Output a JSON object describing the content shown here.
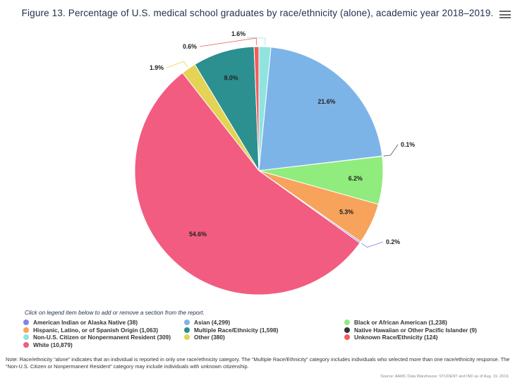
{
  "header": {
    "title": "Figure 13. Percentage of U.S. medical school graduates by race/ethnicity (alone), academic year 2018–2019.",
    "menu_icon": "hamburger-menu-icon"
  },
  "chart_data": {
    "type": "pie",
    "title": "Figure 13. Percentage of U.S. medical school graduates by race/ethnicity (alone), academic year 2018–2019.",
    "legend_position": "bottom",
    "slices": [
      {
        "label": "Non-U.S. Citizen or Nonpermanent Resident",
        "count": 309,
        "percent": 1.6,
        "pct_label": "1.6%",
        "color": "#8fe4e0"
      },
      {
        "label": "Asian",
        "count": 4299,
        "percent": 21.6,
        "pct_label": "21.6%",
        "color": "#7db4e8"
      },
      {
        "label": "Native Hawaiian or Other Pacific Islander",
        "count": 9,
        "percent": 0.1,
        "pct_label": "0.1%",
        "color": "#333333"
      },
      {
        "label": "Black or African American",
        "count": 1238,
        "percent": 6.2,
        "pct_label": "6.2%",
        "color": "#90ec7c"
      },
      {
        "label": "Hispanic, Latino, or of Spanish Origin",
        "count": 1063,
        "percent": 5.3,
        "pct_label": "5.3%",
        "color": "#f7a35c"
      },
      {
        "label": "American Indian or Alaska Native",
        "count": 38,
        "percent": 0.2,
        "pct_label": "0.2%",
        "color": "#8085e9"
      },
      {
        "label": "White",
        "count": 10879,
        "percent": 54.6,
        "pct_label": "54.6%",
        "color": "#f15c80"
      },
      {
        "label": "Other",
        "count": 380,
        "percent": 1.9,
        "pct_label": "1.9%",
        "color": "#e4d354"
      },
      {
        "label": "Multiple Race/Ethnicity",
        "count": 1598,
        "percent": 8.0,
        "pct_label": "8.0%",
        "color": "#2b908f"
      },
      {
        "label": "Unknown Race/Ethnicity",
        "count": 124,
        "percent": 0.6,
        "pct_label": "0.6%",
        "color": "#f45b5b"
      }
    ]
  },
  "legend": {
    "hint": "Click on legend item below to add or remove a section from the report.",
    "items": [
      {
        "text": "American Indian or Alaska Native (38)",
        "color": "#8085e9"
      },
      {
        "text": "Asian (4,299)",
        "color": "#7db4e8"
      },
      {
        "text": "Black or African American (1,238)",
        "color": "#90ec7c"
      },
      {
        "text": "Hispanic, Latino, or of Spanish Origin (1,063)",
        "color": "#f7a35c"
      },
      {
        "text": "Multiple Race/Ethnicity (1,598)",
        "color": "#2b908f"
      },
      {
        "text": "Native Hawaiian or Other Pacific Islander (9)",
        "color": "#333333"
      },
      {
        "text": "Non-U.S. Citizen or Nonpermanent Resident (309)",
        "color": "#8fe4e0"
      },
      {
        "text": "Other (380)",
        "color": "#e4d354"
      },
      {
        "text": "Unknown Race/Ethnicity (124)",
        "color": "#f45b5b"
      },
      {
        "text": "White (10,879)",
        "color": "#f15c80"
      }
    ]
  },
  "note": "Note: Race/ethnicity “alone” indicates that an individual is reported in only one race/ethnicity category. The “Multiple Race/Ethnicity” category includes individuals who selected more than one race/ethnicity response. The “Non-U.S. Citizen or Nonpermanent Resident” category may include individuals with unknown citizenship.",
  "source": "Source: AAMC Data Warehouse: STUDENT and IND as of Aug. 19, 2019."
}
